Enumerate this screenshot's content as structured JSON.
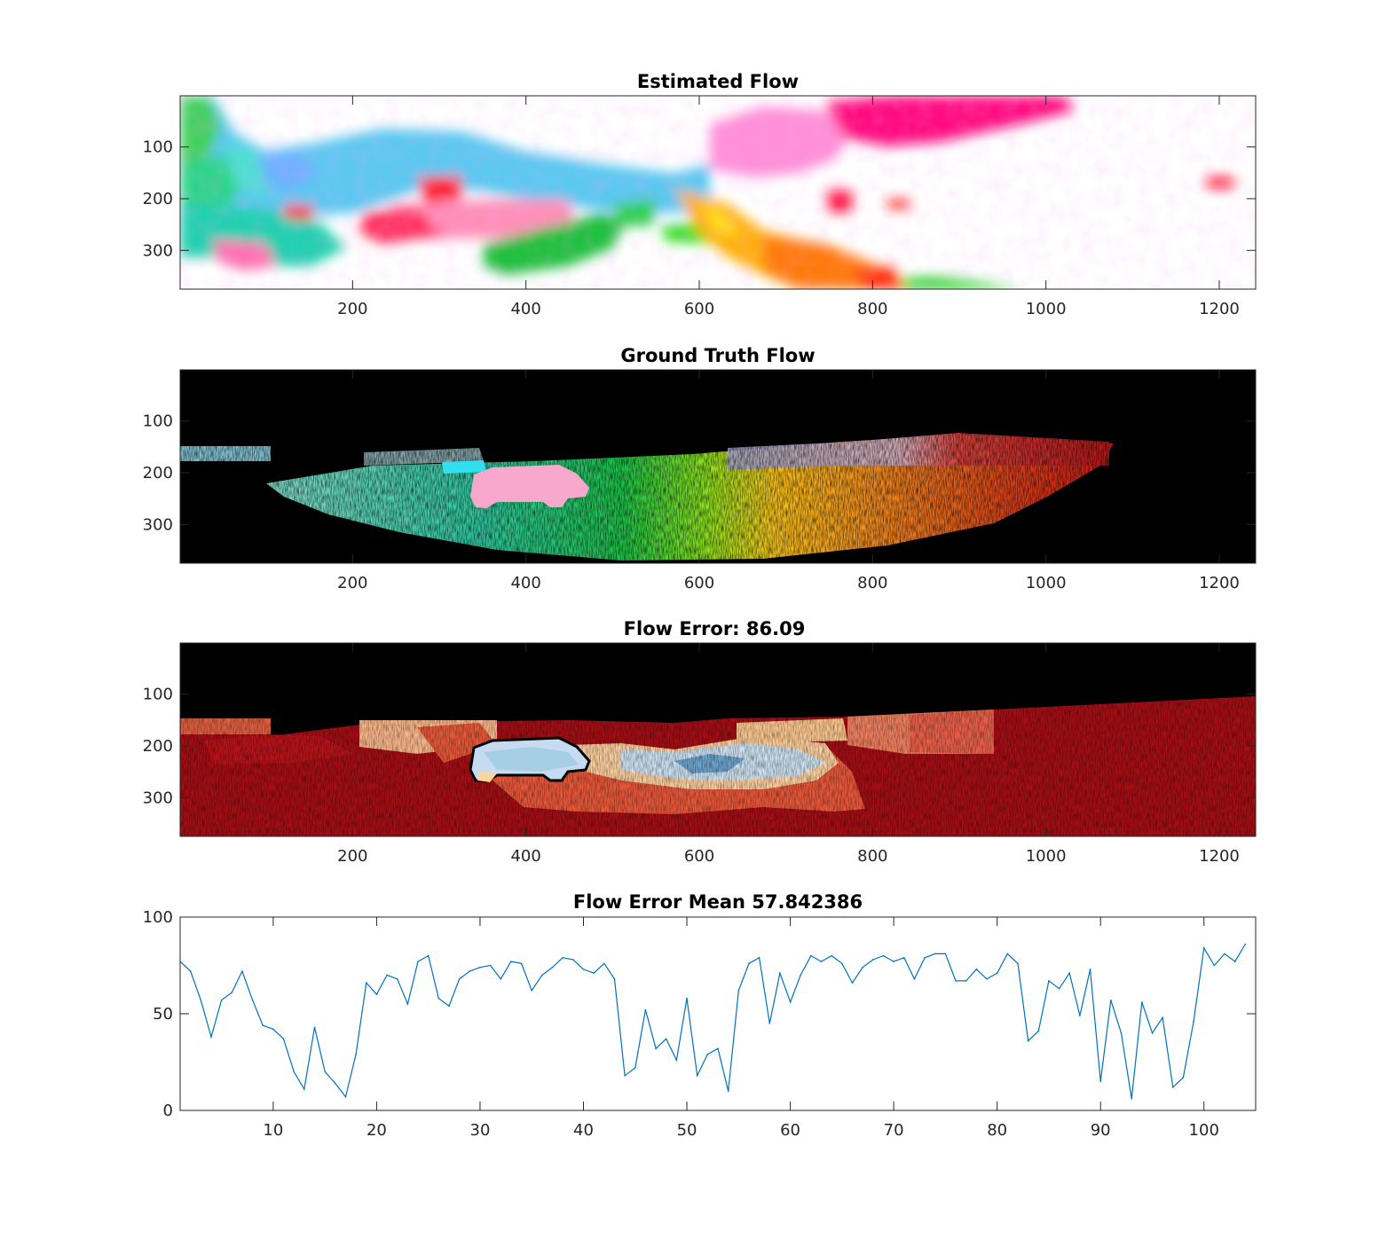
{
  "figure": {
    "background": "#ffffff"
  },
  "panels": [
    {
      "id": "estimated",
      "title": "Estimated Flow",
      "kind": "image",
      "colors": {
        "background": "#ffffff"
      },
      "xticks": [
        200,
        400,
        600,
        800,
        1000,
        1200
      ],
      "yticks": [
        100,
        200,
        300
      ],
      "xlim": [
        1,
        1242
      ],
      "ylim": [
        1,
        375
      ]
    },
    {
      "id": "groundtruth",
      "title": "Ground Truth Flow",
      "kind": "image",
      "colors": {
        "background": "#000000"
      },
      "xticks": [
        200,
        400,
        600,
        800,
        1000,
        1200
      ],
      "yticks": [
        100,
        200,
        300
      ],
      "xlim": [
        1,
        1242
      ],
      "ylim": [
        1,
        375
      ]
    },
    {
      "id": "error",
      "title": "Flow Error: 86.09",
      "kind": "image",
      "colors": {
        "background": "#000000",
        "high_error": "#a50f15",
        "low_error": "#deebf7"
      },
      "xticks": [
        200,
        400,
        600,
        800,
        1000,
        1200
      ],
      "yticks": [
        100,
        200,
        300
      ],
      "xlim": [
        1,
        1242
      ],
      "ylim": [
        1,
        375
      ]
    }
  ],
  "chart_data": {
    "type": "line",
    "title": "Flow Error Mean 57.842386",
    "xlabel": "",
    "ylabel": "",
    "xlim": [
      1,
      105
    ],
    "ylim": [
      0,
      100
    ],
    "xticks": [
      10,
      20,
      30,
      40,
      50,
      60,
      70,
      80,
      90,
      100
    ],
    "yticks": [
      0,
      50,
      100
    ],
    "grid": false,
    "color": "#0072bd",
    "x": [
      1,
      2,
      3,
      4,
      5,
      6,
      7,
      8,
      9,
      10,
      11,
      12,
      13,
      14,
      15,
      16,
      17,
      18,
      19,
      20,
      21,
      22,
      23,
      24,
      25,
      26,
      27,
      28,
      29,
      30,
      31,
      32,
      33,
      34,
      35,
      36,
      37,
      38,
      39,
      40,
      41,
      42,
      43,
      44,
      45,
      46,
      47,
      48,
      49,
      50,
      51,
      52,
      53,
      54,
      55,
      56,
      57,
      58,
      59,
      60,
      61,
      62,
      63,
      64,
      65,
      66,
      67,
      68,
      69,
      70,
      71,
      72,
      73,
      74,
      75,
      76,
      77,
      78,
      79,
      80,
      81,
      82,
      83,
      84,
      85,
      86,
      87,
      88,
      89,
      90,
      91,
      92,
      93,
      94,
      95,
      96,
      97,
      98,
      99,
      100,
      101,
      102,
      103,
      104
    ],
    "y": [
      77,
      72,
      57,
      38,
      57,
      61,
      72,
      57,
      44,
      42,
      37,
      20,
      11,
      43,
      20,
      14,
      7,
      29,
      66,
      60,
      70,
      68,
      55,
      77,
      80,
      58,
      54,
      68,
      72,
      74,
      75,
      68,
      77,
      76,
      62,
      70,
      74,
      79,
      78,
      73,
      71,
      76,
      68,
      18,
      22,
      52,
      32,
      37,
      26,
      58,
      18,
      29,
      32,
      10,
      62,
      76,
      79,
      45,
      71,
      56,
      70,
      80,
      77,
      80,
      76,
      66,
      74,
      78,
      80,
      77,
      79,
      68,
      79,
      81,
      81,
      67,
      67,
      73,
      68,
      71,
      81,
      76,
      36,
      41,
      67,
      63,
      71,
      49,
      73,
      15,
      57,
      40,
      6,
      56,
      40,
      48,
      12,
      17,
      46,
      84,
      75,
      81,
      77,
      86
    ]
  }
}
